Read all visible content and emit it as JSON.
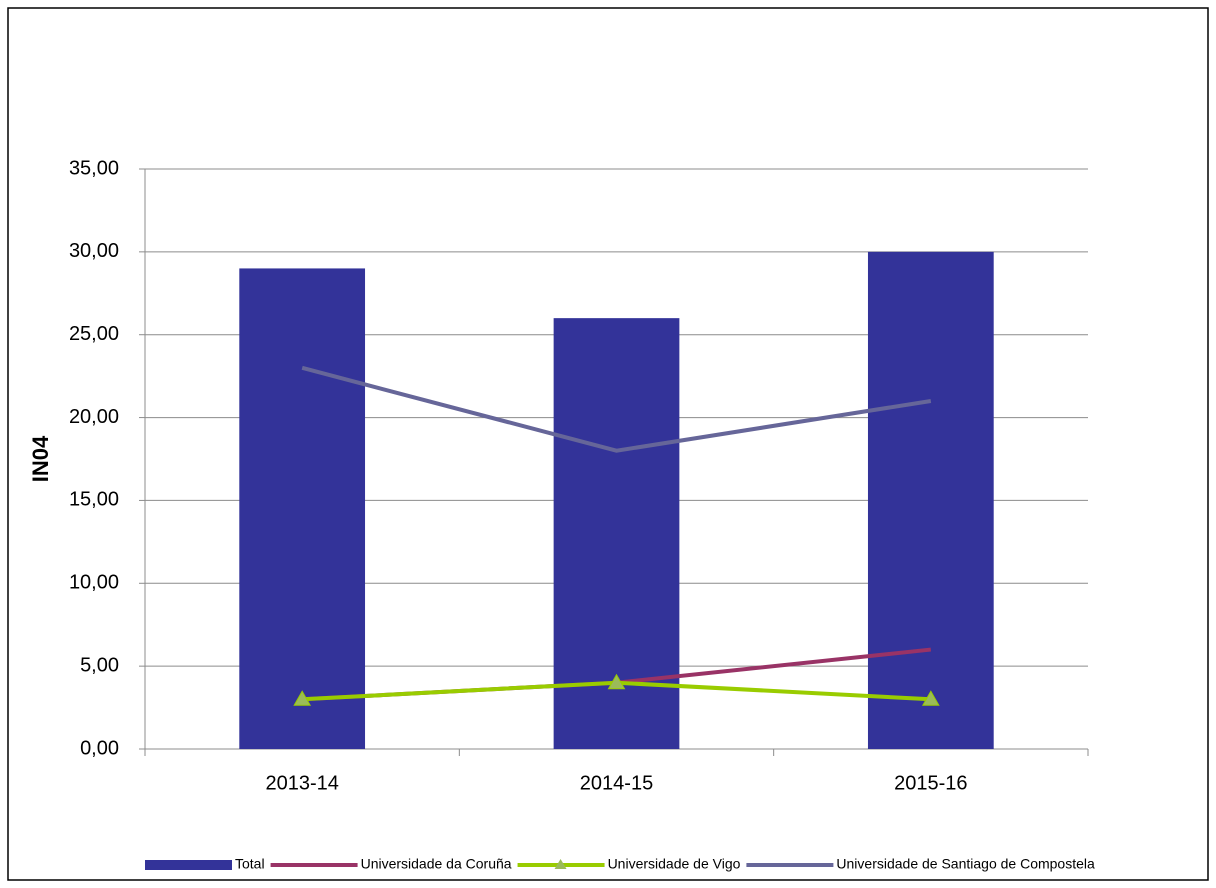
{
  "chart_data": {
    "type": "bar",
    "ylabel": "IN04",
    "categories": [
      "2013-14",
      "2014-15",
      "2015-16"
    ],
    "series": [
      {
        "name": "Total",
        "type": "bar",
        "color": "#333399",
        "values": [
          29,
          26,
          30
        ]
      },
      {
        "name": "Universidade da Coruña",
        "type": "line",
        "color": "#993366",
        "values": [
          3,
          4,
          6
        ]
      },
      {
        "name": "Universidade de Vigo",
        "type": "line",
        "color": "#99cc00",
        "marker": "triangle",
        "values": [
          3,
          4,
          3
        ]
      },
      {
        "name": "Universidade de Santiago de Compostela",
        "type": "line",
        "color": "#666699",
        "values": [
          23,
          18,
          21
        ]
      }
    ],
    "ylim": [
      0,
      35
    ],
    "yticks": [
      {
        "value": 0,
        "label": "0,00"
      },
      {
        "value": 5,
        "label": "5,00"
      },
      {
        "value": 10,
        "label": "10,00"
      },
      {
        "value": 15,
        "label": "15,00"
      },
      {
        "value": 20,
        "label": "20,00"
      },
      {
        "value": 25,
        "label": "25,00"
      },
      {
        "value": 30,
        "label": "30,00"
      },
      {
        "value": 35,
        "label": "35,00"
      }
    ],
    "grid": true,
    "legend": "bottom"
  }
}
